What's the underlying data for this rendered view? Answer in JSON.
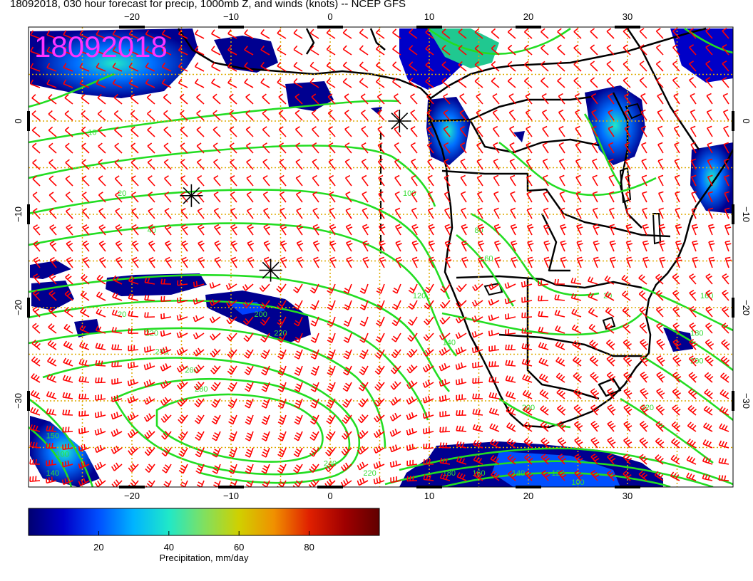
{
  "title": "18092018, 030 hour forecast for precip, 1000mb Z, and winds (knots) -- NCEP GFS",
  "stamp": "18092018",
  "map": {
    "region": "South Atlantic and southern Africa",
    "lon_range": [
      -30,
      40
    ],
    "lat_range": [
      -40,
      9
    ],
    "x_ticks": [
      "−20",
      "−10",
      "0",
      "10",
      "20",
      "30"
    ],
    "x_tick_values": [
      -20,
      -10,
      0,
      10,
      20,
      30
    ],
    "y_ticks": [
      "0",
      "−10",
      "−20",
      "−30"
    ],
    "y_tick_values": [
      0,
      -10,
      -20,
      -30
    ],
    "grid": true,
    "grid_color": "#ddaa00",
    "contour_color": "#22dd22",
    "barb_color": "#ff0000",
    "coast_color": "#000000",
    "markers": [
      {
        "label": "asterisk",
        "lon": 7,
        "lat": 0
      },
      {
        "label": "asterisk",
        "lon": -14,
        "lat": -8
      },
      {
        "label": "asterisk",
        "lon": -6,
        "lat": -16
      }
    ],
    "contour_labels": [
      {
        "text": "10",
        "lon": -24,
        "lat": -1.5
      },
      {
        "text": "20",
        "lon": -21,
        "lat": -8
      },
      {
        "text": "40",
        "lon": -18,
        "lat": -12
      },
      {
        "text": "200",
        "lon": -7,
        "lat": -21
      },
      {
        "text": "220",
        "lon": -5,
        "lat": -23
      },
      {
        "text": "240",
        "lon": -17,
        "lat": -25
      },
      {
        "text": "260",
        "lon": -14,
        "lat": -27
      },
      {
        "text": "280",
        "lon": -13,
        "lat": -29
      },
      {
        "text": "20",
        "lon": -21,
        "lat": -21
      },
      {
        "text": "220",
        "lon": -18,
        "lat": -23
      },
      {
        "text": "240",
        "lon": 0,
        "lat": -37
      },
      {
        "text": "220",
        "lon": 4,
        "lat": -38
      },
      {
        "text": "200",
        "lon": 20,
        "lat": -31
      },
      {
        "text": "100",
        "lon": 8,
        "lat": -8
      },
      {
        "text": "80",
        "lon": 15,
        "lat": -12
      },
      {
        "text": "60",
        "lon": 16,
        "lat": -15
      },
      {
        "text": "20",
        "lon": 28,
        "lat": -19
      },
      {
        "text": "140",
        "lon": 12,
        "lat": -24
      },
      {
        "text": "160",
        "lon": 38,
        "lat": -19
      },
      {
        "text": "180",
        "lon": 37,
        "lat": -23
      },
      {
        "text": "200",
        "lon": 37,
        "lat": -26
      },
      {
        "text": "220",
        "lon": 32,
        "lat": -31
      },
      {
        "text": "120",
        "lon": 9,
        "lat": -19
      },
      {
        "text": "120",
        "lon": 23,
        "lat": -38
      },
      {
        "text": "140",
        "lon": 19,
        "lat": -38
      },
      {
        "text": "160",
        "lon": 15,
        "lat": -38
      },
      {
        "text": "180",
        "lon": 12,
        "lat": -38
      },
      {
        "text": "100",
        "lon": 25,
        "lat": -39
      },
      {
        "text": "150",
        "lon": -28,
        "lat": -34
      },
      {
        "text": "100",
        "lon": -27,
        "lat": -36
      },
      {
        "text": "140",
        "lon": -28,
        "lat": -38
      }
    ]
  },
  "colorbar": {
    "label": "Precipitation, mm/day",
    "min": 0,
    "max": 100,
    "ticks": [
      "20",
      "40",
      "60",
      "80"
    ],
    "tick_values": [
      20,
      40,
      60,
      80
    ],
    "colors": [
      "#000070",
      "#0000c8",
      "#0050ff",
      "#00b4ff",
      "#20e8c8",
      "#80e060",
      "#d0d000",
      "#f09000",
      "#e02000",
      "#a00000",
      "#600000"
    ]
  }
}
